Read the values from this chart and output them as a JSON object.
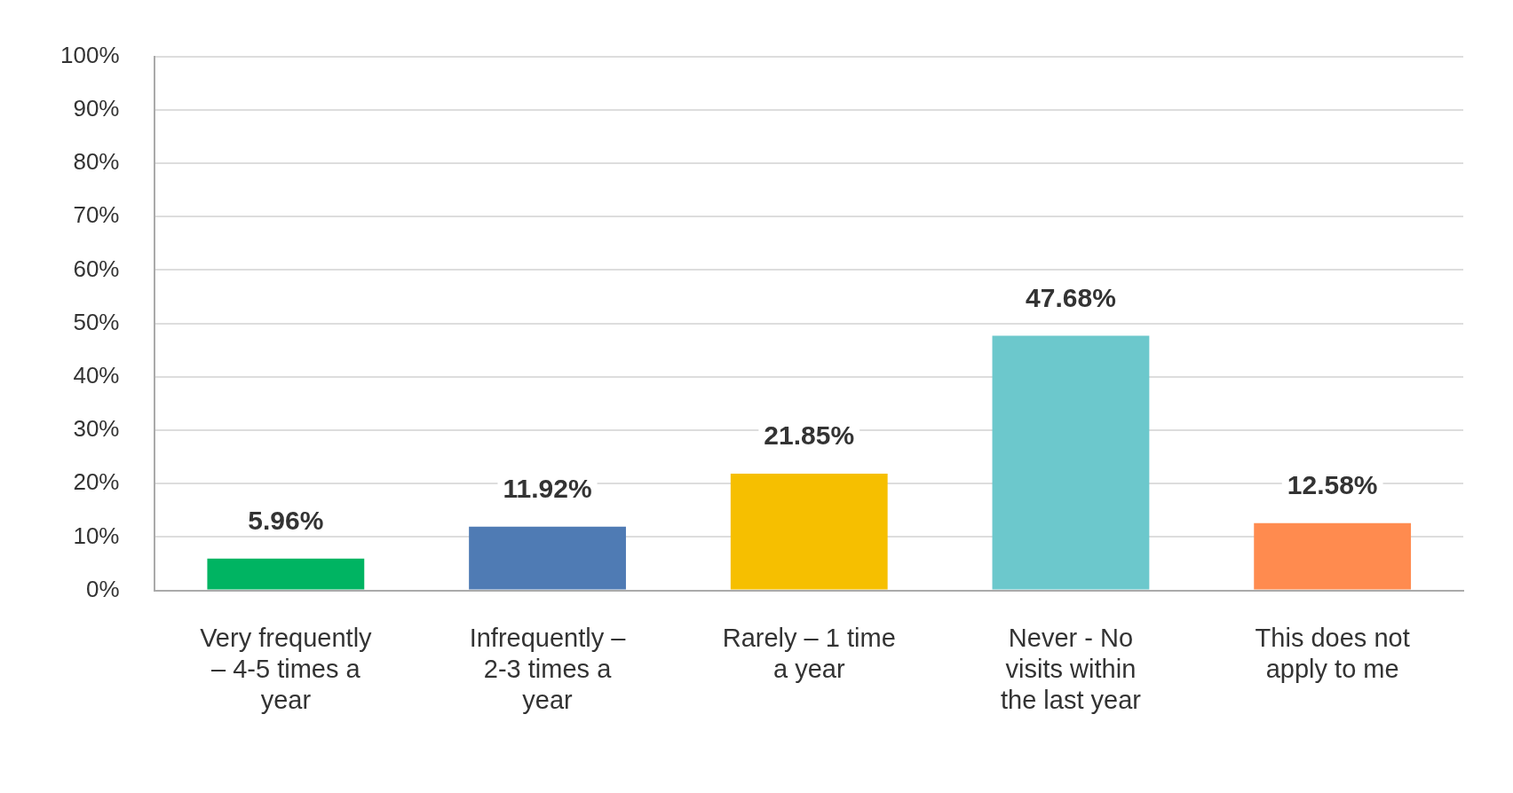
{
  "chart_data": {
    "type": "bar",
    "categories": [
      "Very frequently – 4-5 times a year",
      "Infrequently – 2-3 times a year",
      "Rarely – 1 time a year",
      "Never - No visits within the last year",
      "This does not apply to me"
    ],
    "values": [
      5.96,
      11.92,
      21.85,
      47.68,
      12.58
    ],
    "colors": [
      "#00b462",
      "#4f7bb4",
      "#f6bf00",
      "#6cc8cc",
      "#ff8b4f"
    ],
    "value_labels": [
      "5.96%",
      "11.92%",
      "21.85%",
      "47.68%",
      "12.58%"
    ],
    "ylim": [
      0,
      100
    ],
    "yticks": [
      {
        "value": 0,
        "label": "0%"
      },
      {
        "value": 10,
        "label": "10%"
      },
      {
        "value": 20,
        "label": "20%"
      },
      {
        "value": 30,
        "label": "30%"
      },
      {
        "value": 40,
        "label": "40%"
      },
      {
        "value": 50,
        "label": "50%"
      },
      {
        "value": 60,
        "label": "60%"
      },
      {
        "value": 70,
        "label": "70%"
      },
      {
        "value": 80,
        "label": "80%"
      },
      {
        "value": 90,
        "label": "90%"
      },
      {
        "value": 100,
        "label": "100%"
      }
    ],
    "grid": "y",
    "legend": false
  }
}
